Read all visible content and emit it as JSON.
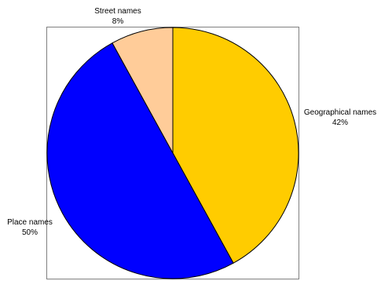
{
  "chart_data": {
    "type": "pie",
    "slices": [
      {
        "label": "Geographical names",
        "value": 42,
        "value_label": "42%",
        "color": "#FFCC00"
      },
      {
        "label": "Place names",
        "value": 50,
        "value_label": "50%",
        "color": "#0000FF"
      },
      {
        "label": "Street names",
        "value": 8,
        "value_label": "8%",
        "color": "#FFCC99"
      }
    ],
    "start_angle": "12 o'clock",
    "direction": "clockwise",
    "legend": "none",
    "title": ""
  }
}
